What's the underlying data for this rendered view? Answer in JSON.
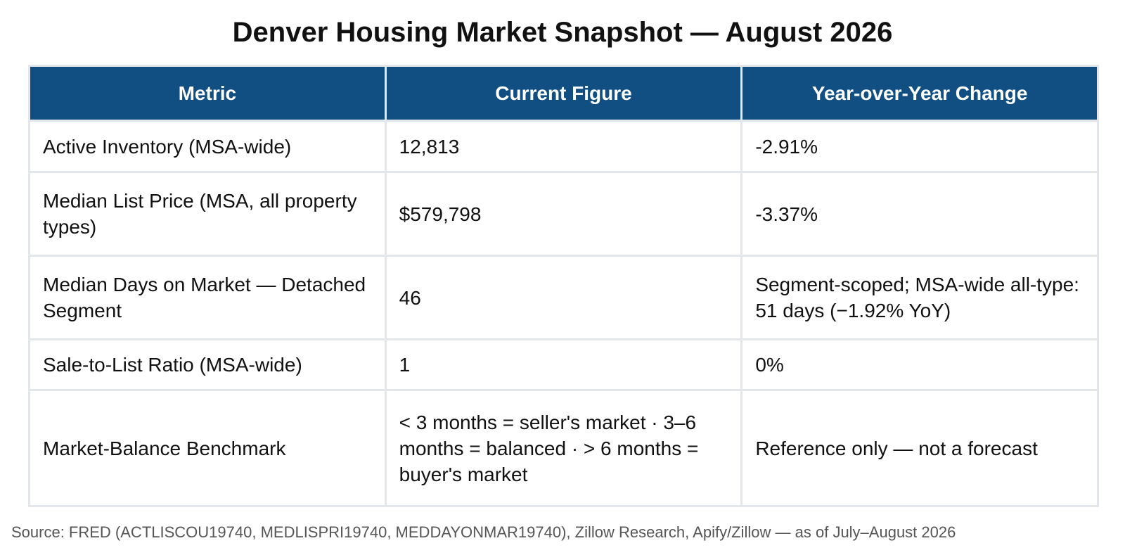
{
  "title": "Denver Housing Market Snapshot — August 2026",
  "table": {
    "headers": [
      "Metric",
      "Current Figure",
      "Year-over-Year Change"
    ],
    "rows": [
      [
        "Active Inventory (MSA-wide)",
        "12,813",
        "-2.91%"
      ],
      [
        "Median List Price (MSA, all property types)",
        "$579,798",
        "-3.37%"
      ],
      [
        "Median Days on Market — Detached Segment",
        "46",
        "Segment-scoped; MSA-wide all-type: 51 days (−1.92% YoY)"
      ],
      [
        "Sale-to-List Ratio (MSA-wide)",
        "1",
        "0%"
      ],
      [
        "Market-Balance Benchmark",
        "< 3 months = seller's market · 3–6 months = balanced · > 6 months = buyer's market",
        "Reference only — not a forecast"
      ]
    ]
  },
  "source": "Source: FRED (ACTLISCOU19740, MEDLISPRI19740, MEDDAYONMAR19740), Zillow Research, Apify/Zillow — as of July–August 2026",
  "colors": {
    "header_background": "#114e82",
    "header_text": "#ffffff",
    "grid_lines": "#e3e6ea"
  }
}
